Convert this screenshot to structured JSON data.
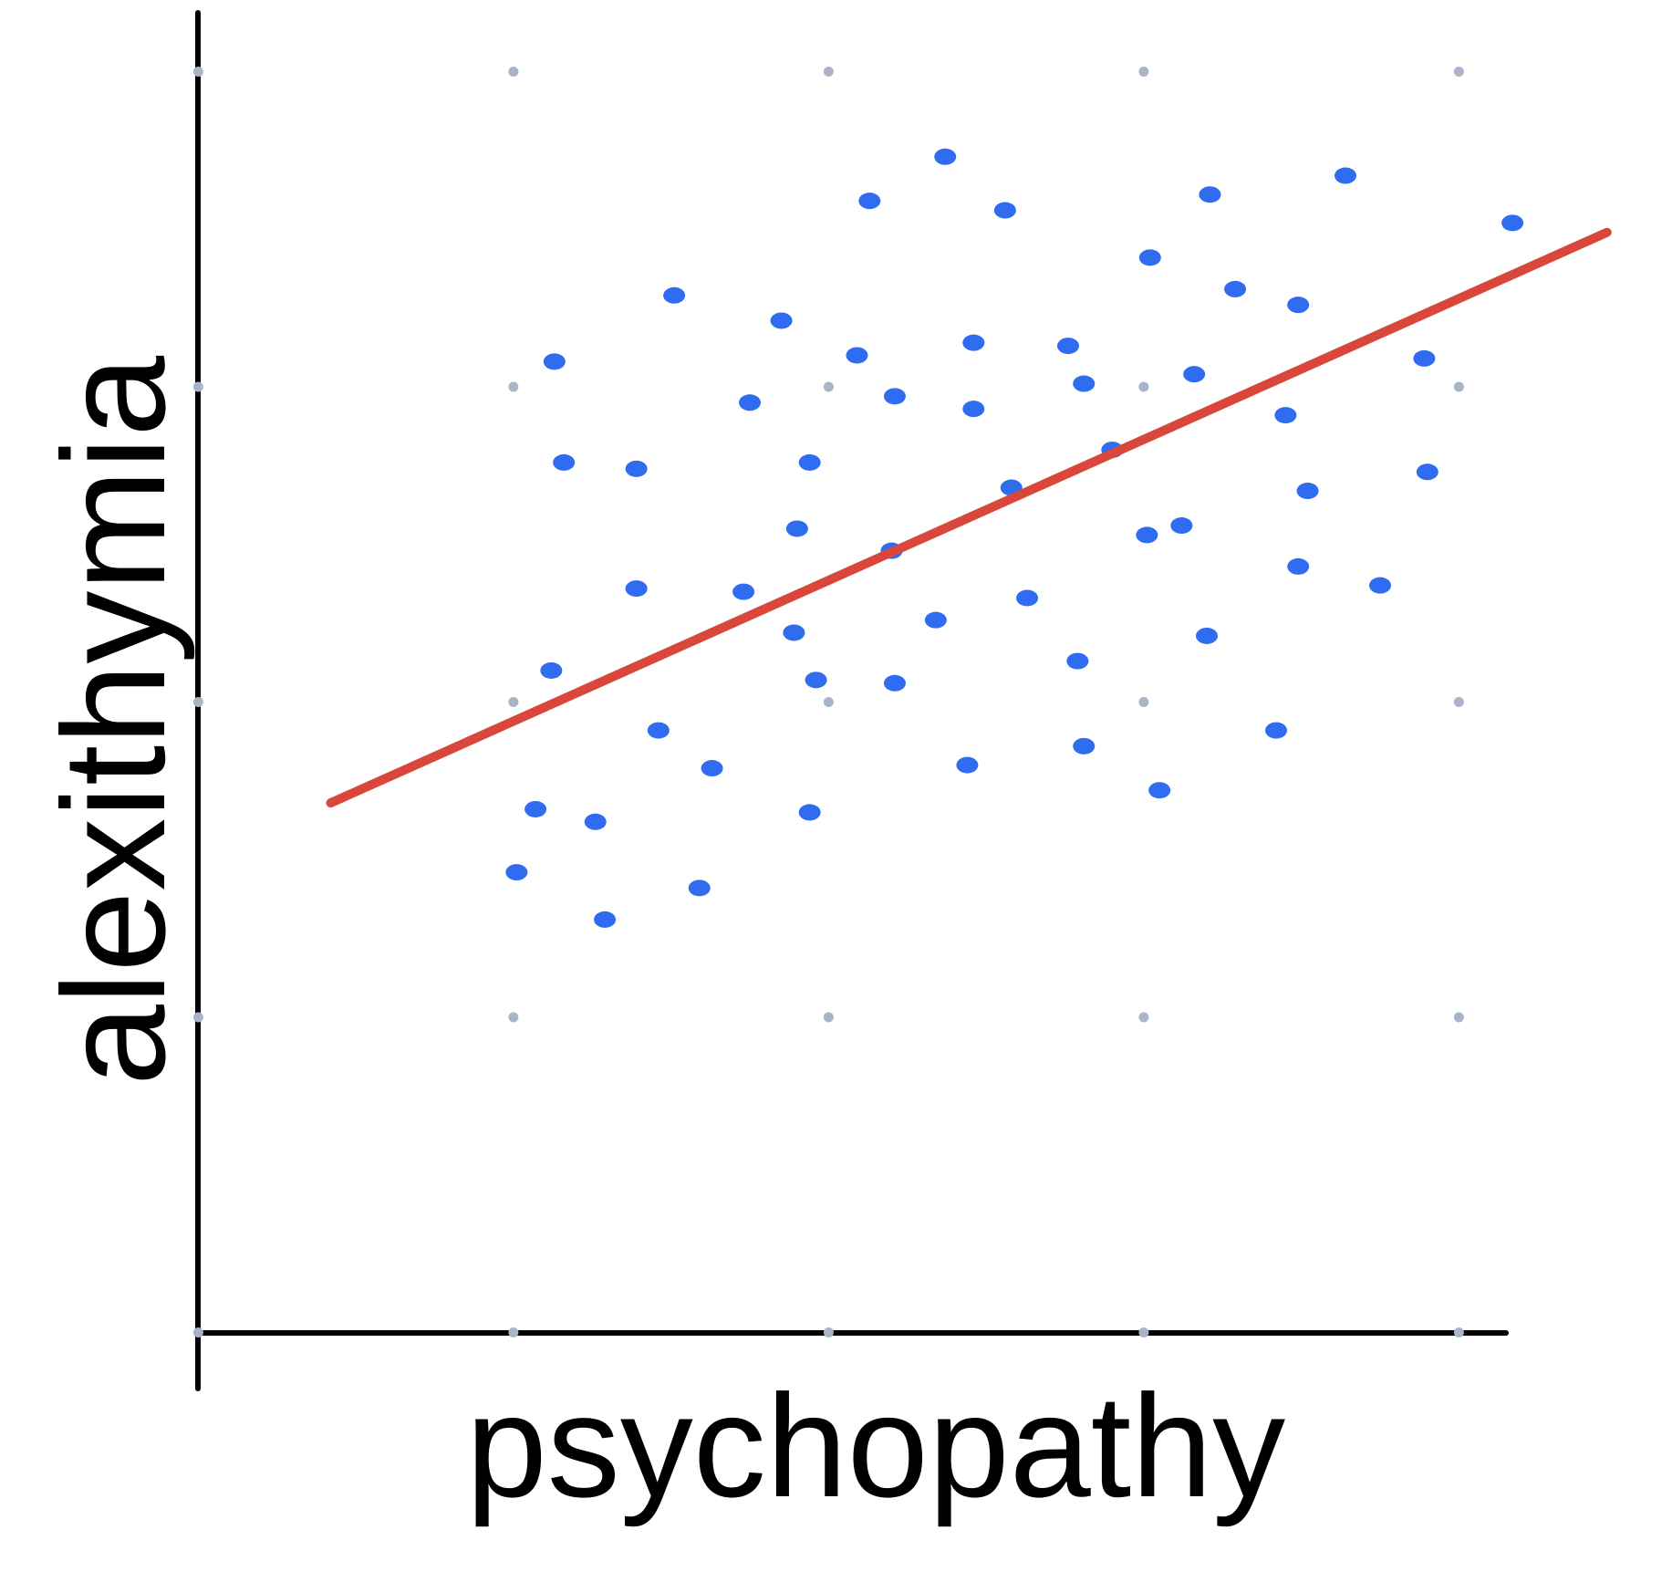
{
  "chart_data": {
    "type": "scatter",
    "x_label": "psychopathy",
    "y_label": "alexithymia",
    "xlim": [
      0,
      4.5
    ],
    "ylim": [
      0,
      4.2
    ],
    "xticks": [
      0,
      1,
      2,
      3,
      4
    ],
    "yticks": [
      0,
      1,
      2,
      3,
      4
    ],
    "grid": true,
    "grid_color": "#a9b4c6",
    "series": [
      {
        "color": "#2f6cf0",
        "x": [
          2.37,
          2.13,
          2.56,
          3.21,
          3.64,
          4.17,
          3.02,
          3.29,
          3.49,
          1.51,
          1.85,
          1.13,
          2.09,
          2.46,
          2.76,
          2.81,
          3.16,
          3.89,
          1.75,
          2.21,
          2.46,
          3.45,
          1.16,
          1.39,
          1.94,
          2.9,
          3.9,
          2.58,
          3.52,
          1.9,
          3.01,
          3.12,
          2.2,
          3.49,
          3.75,
          1.39,
          1.73,
          2.63,
          2.34,
          1.89,
          3.2,
          1.12,
          2.79,
          1.96,
          2.21,
          1.46,
          3.42,
          2.81,
          1.63,
          2.44,
          1.94,
          3.05,
          1.07,
          1.26,
          1.01,
          1.59,
          1.29
        ],
        "y": [
          3.73,
          3.59,
          3.56,
          3.61,
          3.67,
          3.52,
          3.41,
          3.31,
          3.26,
          3.29,
          3.21,
          3.08,
          3.1,
          3.14,
          3.13,
          3.01,
          3.04,
          3.09,
          2.95,
          2.97,
          2.93,
          2.91,
          2.76,
          2.74,
          2.76,
          2.8,
          2.73,
          2.68,
          2.67,
          2.55,
          2.53,
          2.56,
          2.48,
          2.43,
          2.37,
          2.36,
          2.35,
          2.33,
          2.26,
          2.22,
          2.21,
          2.1,
          2.13,
          2.07,
          2.06,
          1.91,
          1.91,
          1.86,
          1.79,
          1.8,
          1.65,
          1.72,
          1.66,
          1.62,
          1.46,
          1.41,
          1.31
        ]
      }
    ],
    "trend_line": {
      "color": "#d9463a",
      "x": [
        0.42,
        4.47
      ],
      "y": [
        1.68,
        3.49
      ]
    }
  }
}
